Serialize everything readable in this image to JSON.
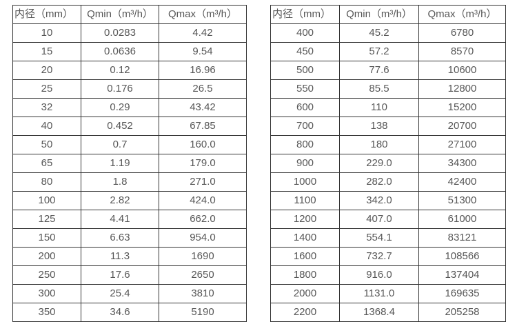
{
  "page": {
    "background_color": "#ffffff",
    "border_color": "#333333",
    "text_color": "#575757"
  },
  "chart_data": [
    {
      "type": "table",
      "name": "flow-rate-table-small-diameters",
      "columns": [
        "内径（mm）",
        "Qmin（m³/h）",
        "Qmax（m³/h）"
      ],
      "rows": [
        [
          "10",
          "0.0283",
          "4.42"
        ],
        [
          "15",
          "0.0636",
          "9.54"
        ],
        [
          "20",
          "0.12",
          "16.96"
        ],
        [
          "25",
          "0.176",
          "26.5"
        ],
        [
          "32",
          "0.29",
          "43.42"
        ],
        [
          "40",
          "0.452",
          "67.85"
        ],
        [
          "50",
          "0.7",
          "160.0"
        ],
        [
          "65",
          "1.19",
          "179.0"
        ],
        [
          "80",
          "1.8",
          "271.0"
        ],
        [
          "100",
          "2.82",
          "424.0"
        ],
        [
          "125",
          "4.41",
          "662.0"
        ],
        [
          "150",
          "6.63",
          "954.0"
        ],
        [
          "200",
          "11.3",
          "1690"
        ],
        [
          "250",
          "17.6",
          "2650"
        ],
        [
          "300",
          "25.4",
          "3810"
        ],
        [
          "350",
          "34.6",
          "5190"
        ]
      ]
    },
    {
      "type": "table",
      "name": "flow-rate-table-large-diameters",
      "columns": [
        "内径（mm）",
        "Qmin（m³/h）",
        "Qmax（m³/h）"
      ],
      "rows": [
        [
          "400",
          "45.2",
          "6780"
        ],
        [
          "450",
          "57.2",
          "8570"
        ],
        [
          "500",
          "77.6",
          "10600"
        ],
        [
          "550",
          "85.5",
          "12800"
        ],
        [
          "600",
          "110",
          "15200"
        ],
        [
          "700",
          "138",
          "20700"
        ],
        [
          "800",
          "180",
          "27100"
        ],
        [
          "900",
          "229.0",
          "34300"
        ],
        [
          "1000",
          "282.0",
          "42400"
        ],
        [
          "1100",
          "342.0",
          "51300"
        ],
        [
          "1200",
          "407.0",
          "61000"
        ],
        [
          "1400",
          "554.1",
          "83121"
        ],
        [
          "1600",
          "732.7",
          "108566"
        ],
        [
          "1800",
          "916.0",
          "137404"
        ],
        [
          "2000",
          "1131.0",
          "169635"
        ],
        [
          "2200",
          "1368.4",
          "205258"
        ]
      ]
    }
  ]
}
